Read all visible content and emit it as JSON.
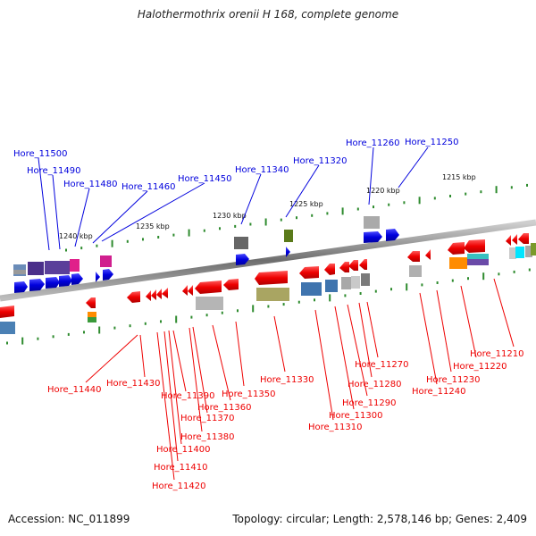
{
  "title": "Halothermothrix orenii H 168, complete genome",
  "footer": {
    "accession": "Accession: NC_011899",
    "summary": "Topology: circular; Length: 2,578,146 bp; Genes: 2,409"
  },
  "colors": {
    "forward": "#0000dd",
    "reverse": "#ee0000",
    "backbone": "#888888",
    "tick": "#2e8b2e"
  },
  "scale_labels": [
    "1215 kbp",
    "1220 kbp",
    "1225 kbp",
    "1230 kbp",
    "1235 kbp",
    "1240 kbp"
  ],
  "genes_forward": [
    "Hore_11250",
    "Hore_11260",
    "Hore_11320",
    "Hore_11340",
    "Hore_11450",
    "Hore_11460",
    "Hore_11480",
    "Hore_11490",
    "Hore_11500"
  ],
  "genes_reverse": [
    "Hore_11210",
    "Hore_11220",
    "Hore_11230",
    "Hore_11240",
    "Hore_11270",
    "Hore_11280",
    "Hore_11290",
    "Hore_11300",
    "Hore_11310",
    "Hore_11330",
    "Hore_11350",
    "Hore_11360",
    "Hore_11370",
    "Hore_11380",
    "Hore_11390",
    "Hore_11400",
    "Hore_11410",
    "Hore_11420",
    "Hore_11430",
    "Hore_11440"
  ]
}
